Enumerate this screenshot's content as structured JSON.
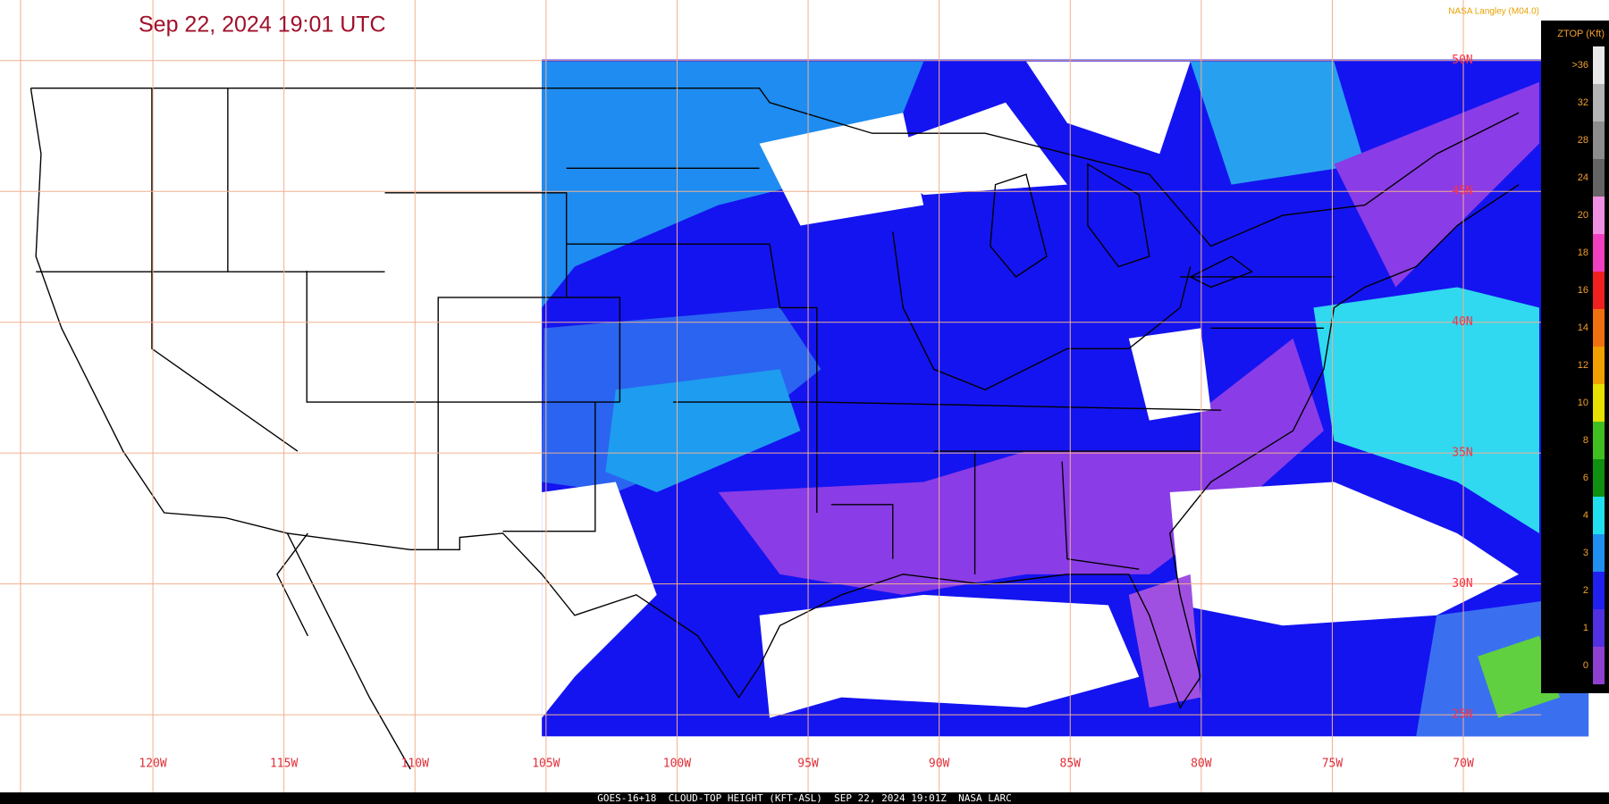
{
  "header": {
    "title": "Sep 22, 2024 19:01 UTC",
    "credit": "NASA Langley (M04.0)"
  },
  "legend": {
    "title": "ZTOP (Kft)",
    "labels": [
      ">36",
      "32",
      "28",
      "24",
      "20",
      "18",
      "16",
      "14",
      "12",
      "10",
      "8",
      "6",
      "4",
      "3",
      "2",
      "1",
      "0"
    ],
    "colors": [
      "#e8e8e8",
      "#b4b4b4",
      "#8c8c8c",
      "#646464",
      "#f090e0",
      "#f040c0",
      "#f02020",
      "#f07010",
      "#f0a000",
      "#e8e000",
      "#40c020",
      "#109010",
      "#20e0f0",
      "#2090f0",
      "#2020f0",
      "#5030e0",
      "#9040d0"
    ]
  },
  "map": {
    "longitude_labels": [
      "120W",
      "115W",
      "110W",
      "105W",
      "100W",
      "95W",
      "90W",
      "85W",
      "80W",
      "75W",
      "70W"
    ],
    "latitude_labels": [
      "50N",
      "45N",
      "40N",
      "35N",
      "30N",
      "25N"
    ]
  },
  "footer": "GOES-16+18  CLOUD-TOP HEIGHT (KFT-ASL)  SEP 22, 2024 19:01Z  NASA LARC"
}
